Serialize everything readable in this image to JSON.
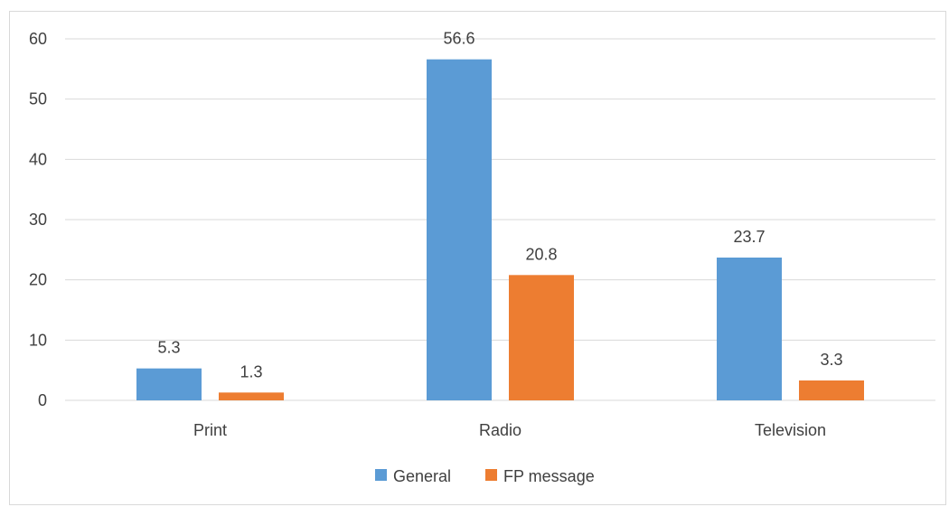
{
  "chart_data": {
    "type": "bar",
    "title": "",
    "xlabel": "",
    "ylabel": "",
    "categories": [
      "Print",
      "Radio",
      "Television"
    ],
    "series": [
      {
        "name": "General",
        "values": [
          5.3,
          56.6,
          23.7
        ],
        "color": "#5b9bd5"
      },
      {
        "name": "FP message",
        "values": [
          1.3,
          20.8,
          3.3
        ],
        "color": "#ed7d31"
      }
    ],
    "ylim": [
      0,
      60
    ],
    "yticks": [
      "0",
      "10",
      "20",
      "30",
      "40",
      "50",
      "60"
    ],
    "data_labels": [
      [
        "5.3",
        "56.6",
        "23.7"
      ],
      [
        "1.3",
        "20.8",
        "3.3"
      ]
    ],
    "grid": true,
    "legend": "bottom",
    "gridline_color": "#d9d9d9",
    "text_color": "#404040"
  }
}
